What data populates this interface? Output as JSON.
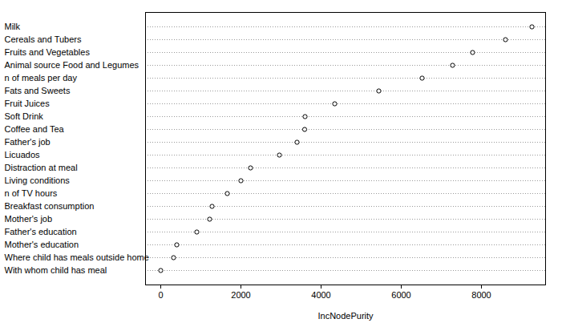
{
  "chart_data": {
    "type": "dot",
    "orientation": "horizontal",
    "grid": true,
    "color": "#000000",
    "marker": "open_circle",
    "x_label": "IncNodePurity",
    "categories": [
      "Milk",
      "Cereals and Tubers",
      "Fruits and Vegetables",
      "Animal source Food and Legumes",
      "n of meals per day",
      "Fats and Sweets",
      "Fruit Juices",
      "Soft Drink",
      "Coffee and Tea",
      "Father's job",
      "Licuados",
      "Distraction at meal",
      "Living conditions",
      "n of TV hours",
      "Breakfast consumption",
      "Mother's job",
      "Father's education",
      "Mother's education",
      "Where child has meals outside home",
      "With whom child has meal"
    ],
    "values": [
      9260,
      8600,
      7780,
      7280,
      6520,
      5440,
      4340,
      3600,
      3590,
      3400,
      2960,
      2240,
      2000,
      1660,
      1280,
      1220,
      900,
      400,
      320,
      0
    ],
    "xlim": [
      -380,
      9600
    ],
    "xticks": [
      0,
      2000,
      4000,
      6000,
      8000
    ]
  }
}
